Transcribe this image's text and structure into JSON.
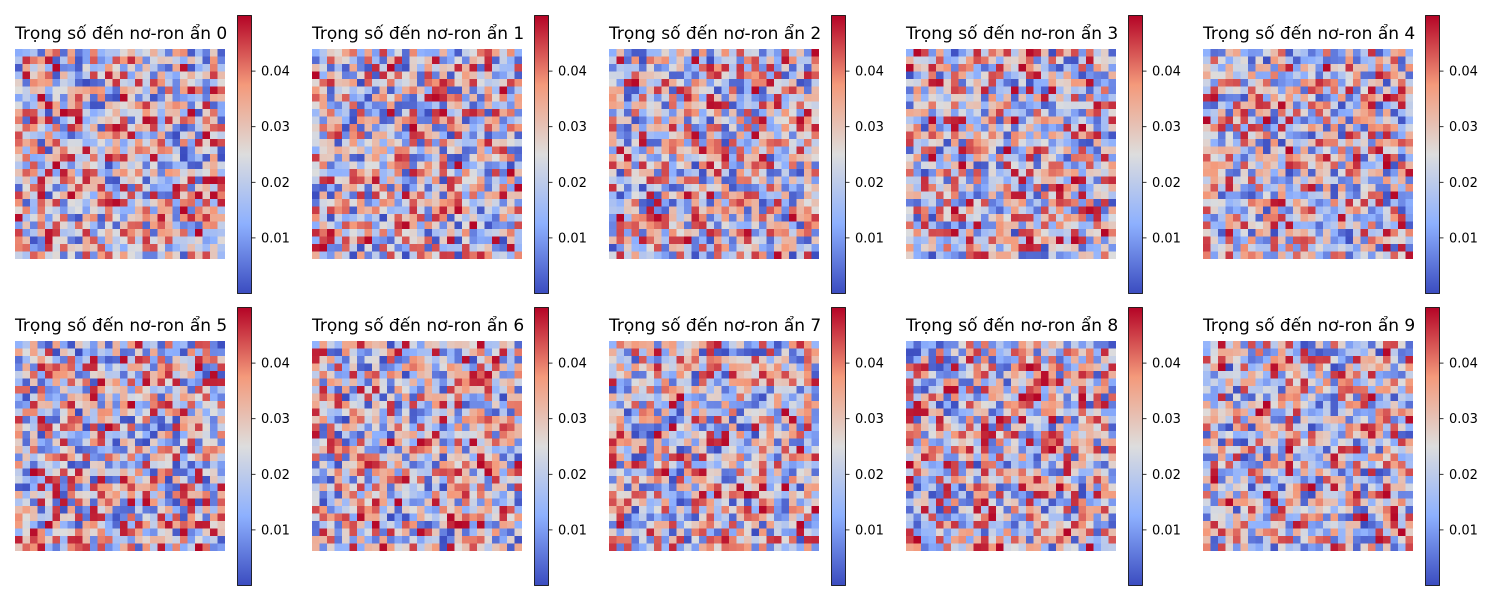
{
  "chart_data": {
    "type": "heatmap",
    "layout": {
      "rows": 2,
      "cols": 5
    },
    "colormap": "coolwarm",
    "colormap_stops": [
      "#3b4cc0",
      "#8db0fe",
      "#dddddd",
      "#f49a7b",
      "#b40426"
    ],
    "grid_size": [
      28,
      28
    ],
    "random_seed_note": "",
    "colorbar": {
      "vmin": 0.0,
      "vmax": 0.05,
      "ticks": [
        0.01,
        0.02,
        0.03,
        0.04
      ],
      "tick_labels": [
        "0.01",
        "0.02",
        "0.03",
        "0.04"
      ]
    },
    "panels": [
      {
        "title": "Trọng số đến nơ-ron ẩn 0",
        "seed": 11
      },
      {
        "title": "Trọng số đến nơ-ron ẩn 1",
        "seed": 23
      },
      {
        "title": "Trọng số đến nơ-ron ẩn 2",
        "seed": 37
      },
      {
        "title": "Trọng số đến nơ-ron ẩn 3",
        "seed": 41
      },
      {
        "title": "Trọng số đến nơ-ron ẩn 4",
        "seed": 53
      },
      {
        "title": "Trọng số đến nơ-ron ẩn 5",
        "seed": 67
      },
      {
        "title": "Trọng số đến nơ-ron ẩn 6",
        "seed": 71
      },
      {
        "title": "Trọng số đến nơ-ron ẩn 7",
        "seed": 83
      },
      {
        "title": "Trọng số đến nơ-ron ẩn 8",
        "seed": 97
      },
      {
        "title": "Trọng số đến nơ-ron ẩn 9",
        "seed": 101
      }
    ]
  }
}
